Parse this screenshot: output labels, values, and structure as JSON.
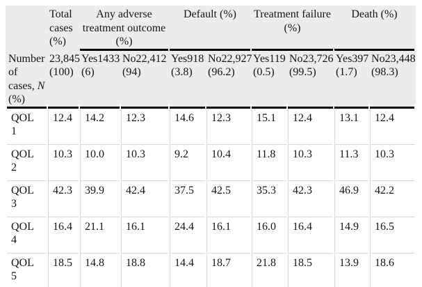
{
  "table": {
    "colors": {
      "header_bg": "#ececec",
      "rule_color": "#000000",
      "grid_color": "#d9d9d9",
      "text_color": "#141414",
      "footer_strip_bg": "#ececec"
    },
    "group_headers": [
      {
        "label": "",
        "span": 1
      },
      {
        "label": "Total cases (%)",
        "span": 1
      },
      {
        "label": "Any adverse treatment outcome (%)",
        "span": 2
      },
      {
        "label": "Default (%)",
        "span": 2
      },
      {
        "label": "Treatment failure (%)",
        "span": 2
      },
      {
        "label": "Death (%)",
        "span": 2
      }
    ],
    "subheader": {
      "label_pre": "Number of cases, ",
      "label_italic": "N",
      "label_post": " (%)",
      "cells": [
        "23,845 (100)",
        "Yes1433 (6)",
        "No22,412 (94)",
        "Yes918 (3.8)",
        "No22,927 (96.2)",
        "Yes119 (0.5)",
        "No23,726 (99.5)",
        "Yes397 (1.7)",
        "No23,448 (98.3)"
      ]
    },
    "rows": [
      {
        "label": "QOL 1",
        "values": [
          "12.4",
          "14.2",
          "12.3",
          "14.6",
          "12.3",
          "15.1",
          "12.4",
          "13.1",
          "12.4"
        ]
      },
      {
        "label": "QOL 2",
        "values": [
          "10.3",
          "10.0",
          "10.3",
          "9.2",
          "10.4",
          "11.8",
          "10.3",
          "11.3",
          "10.3"
        ]
      },
      {
        "label": "QOL 3",
        "values": [
          "42.3",
          "39.9",
          "42.4",
          "37.5",
          "42.5",
          "35.3",
          "42.3",
          "46.9",
          "42.2"
        ]
      },
      {
        "label": "QOL 4",
        "values": [
          "16.4",
          "21.1",
          "16.1",
          "24.4",
          "16.1",
          "16.0",
          "16.4",
          "14.9",
          "16.5"
        ]
      },
      {
        "label": "QOL 5",
        "values": [
          "18.5",
          "14.8",
          "18.8",
          "14.4",
          "18.7",
          "21.8",
          "18.5",
          "13.9",
          "18.6"
        ]
      }
    ]
  }
}
